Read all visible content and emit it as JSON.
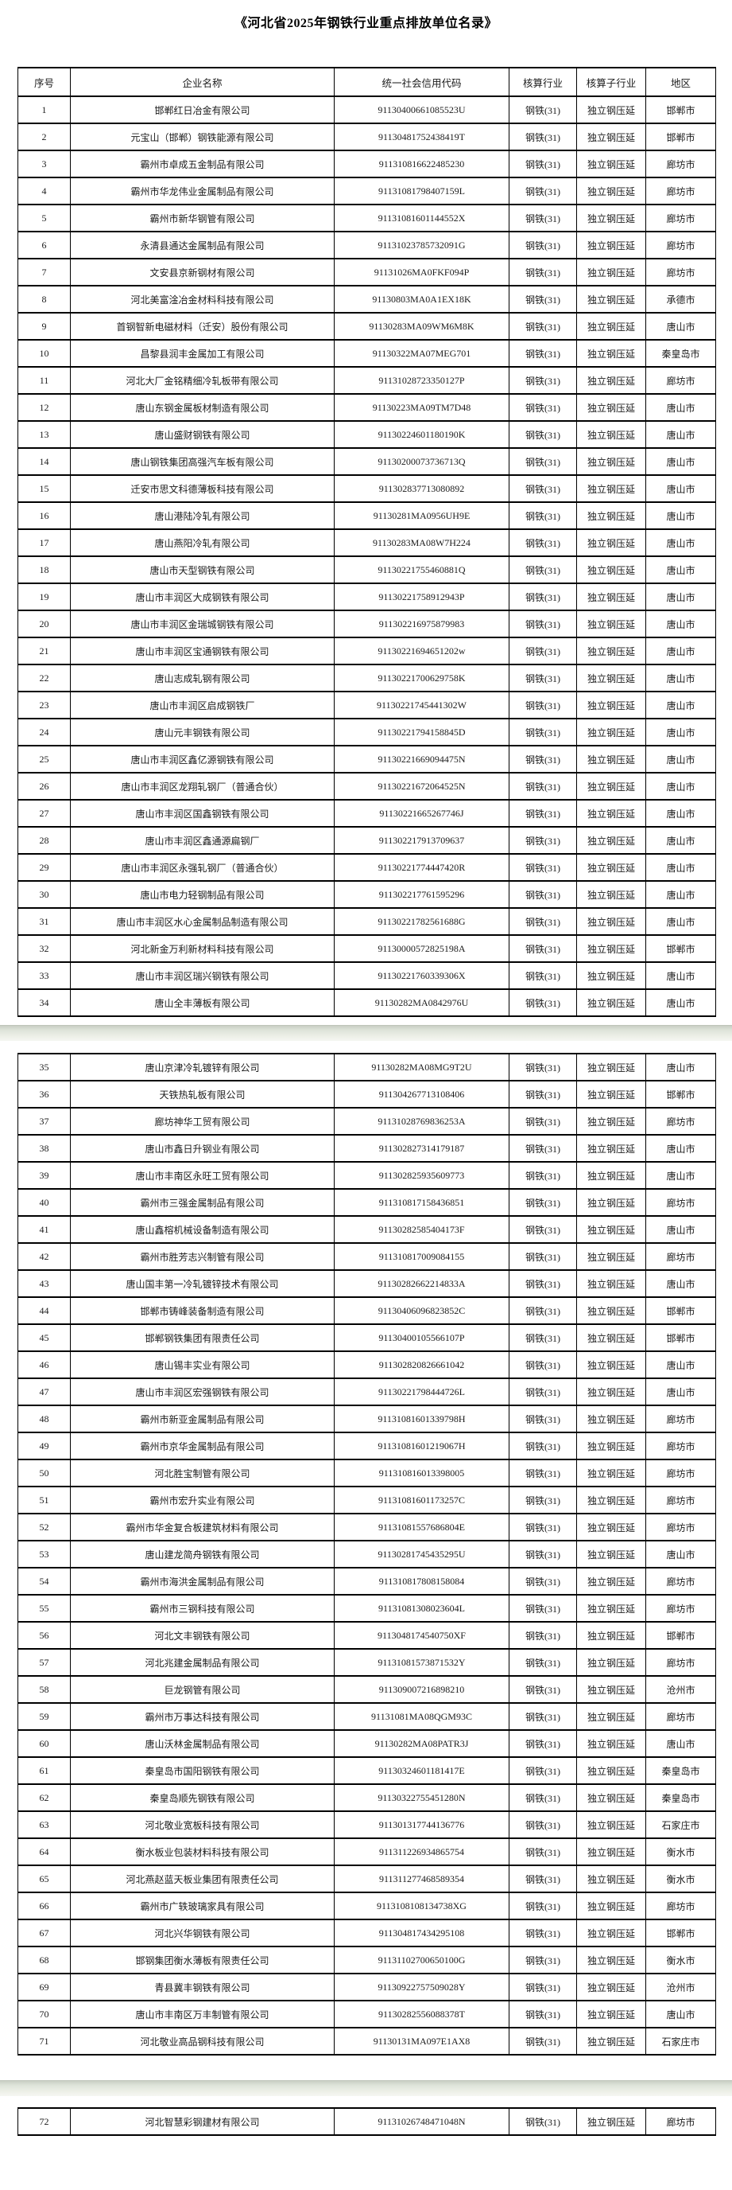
{
  "document": {
    "title": "《河北省2025年钢铁行业重点排放单位名录》"
  },
  "table": {
    "headers": [
      "序号",
      "企业名称",
      "统一社会信用代码",
      "核算行业",
      "核算子行业",
      "地区"
    ],
    "pages": [
      {
        "rows": [
          [
            "1",
            "邯郸红日冶金有限公司",
            "91130400661085523U",
            "钢铁(31)",
            "独立钢压延",
            "邯郸市"
          ],
          [
            "2",
            "元宝山（邯郸）钢铁能源有限公司",
            "91130481752438419T",
            "钢铁(31)",
            "独立钢压延",
            "邯郸市"
          ],
          [
            "3",
            "霸州市卓成五金制品有限公司",
            "911310816622485230",
            "钢铁(31)",
            "独立钢压延",
            "廊坊市"
          ],
          [
            "4",
            "霸州市华龙伟业金属制品有限公司",
            "91131081798407159L",
            "钢铁(31)",
            "独立钢压延",
            "廊坊市"
          ],
          [
            "5",
            "霸州市新华钢管有限公司",
            "91131081601144552X",
            "钢铁(31)",
            "独立钢压延",
            "廊坊市"
          ],
          [
            "6",
            "永清县通达金属制品有限公司",
            "91131023785732091G",
            "钢铁(31)",
            "独立钢压延",
            "廊坊市"
          ],
          [
            "7",
            "文安县京新钢材有限公司",
            "91131026MA0FKF094P",
            "钢铁(31)",
            "独立钢压延",
            "廊坊市"
          ],
          [
            "8",
            "河北美富淦冶金材料科技有限公司",
            "91130803MA0A1EX18K",
            "钢铁(31)",
            "独立钢压延",
            "承德市"
          ],
          [
            "9",
            "首钢智新电磁材料（迁安）股份有限公司",
            "91130283MA09WM6M8K",
            "钢铁(31)",
            "独立钢压延",
            "唐山市"
          ],
          [
            "10",
            "昌黎县润丰金属加工有限公司",
            "91130322MA07MEG701",
            "钢铁(31)",
            "独立钢压延",
            "秦皇岛市"
          ],
          [
            "11",
            "河北大厂金铭精细冷轧板带有限公司",
            "91131028723350127P",
            "钢铁(31)",
            "独立钢压延",
            "廊坊市"
          ],
          [
            "12",
            "唐山东钢金属板材制造有限公司",
            "91130223MA09TM7D48",
            "钢铁(31)",
            "独立钢压延",
            "唐山市"
          ],
          [
            "13",
            "唐山盛财钢铁有限公司",
            "91130224601180190K",
            "钢铁(31)",
            "独立钢压延",
            "唐山市"
          ],
          [
            "14",
            "唐山钢铁集团高强汽车板有限公司",
            "91130200073736713Q",
            "钢铁(31)",
            "独立钢压延",
            "唐山市"
          ],
          [
            "15",
            "迁安市思文科德薄板科技有限公司",
            "911302837713080892",
            "钢铁(31)",
            "独立钢压延",
            "唐山市"
          ],
          [
            "16",
            "唐山港陆冷轧有限公司",
            "91130281MA0956UH9E",
            "钢铁(31)",
            "独立钢压延",
            "唐山市"
          ],
          [
            "17",
            "唐山燕阳冷轧有限公司",
            "91130283MA08W7H224",
            "钢铁(31)",
            "独立钢压延",
            "唐山市"
          ],
          [
            "18",
            "唐山市天型钢铁有限公司",
            "91130221755460881Q",
            "钢铁(31)",
            "独立钢压延",
            "唐山市"
          ],
          [
            "19",
            "唐山市丰润区大成钢铁有限公司",
            "91130221758912943P",
            "钢铁(31)",
            "独立钢压延",
            "唐山市"
          ],
          [
            "20",
            "唐山市丰润区金瑞城钢铁有限公司",
            "911302216975879983",
            "钢铁(31)",
            "独立钢压延",
            "唐山市"
          ],
          [
            "21",
            "唐山市丰润区宝通钢铁有限公司",
            "91130221694651202w",
            "钢铁(31)",
            "独立钢压延",
            "唐山市"
          ],
          [
            "22",
            "唐山志成轧钢有限公司",
            "91130221700629758K",
            "钢铁(31)",
            "独立钢压延",
            "唐山市"
          ],
          [
            "23",
            "唐山市丰润区启成钢铁厂",
            "91130221745441302W",
            "钢铁(31)",
            "独立钢压延",
            "唐山市"
          ],
          [
            "24",
            "唐山元丰钢铁有限公司",
            "91130221794158845D",
            "钢铁(31)",
            "独立钢压延",
            "唐山市"
          ],
          [
            "25",
            "唐山市丰润区鑫亿源钢铁有限公司",
            "91130221669094475N",
            "钢铁(31)",
            "独立钢压延",
            "唐山市"
          ],
          [
            "26",
            "唐山市丰润区龙翔轧钢厂（普通合伙）",
            "91130221672064525N",
            "钢铁(31)",
            "独立钢压延",
            "唐山市"
          ],
          [
            "27",
            "唐山市丰润区国鑫钢铁有限公司",
            "91130221665267746J",
            "钢铁(31)",
            "独立钢压延",
            "唐山市"
          ],
          [
            "28",
            "唐山市丰润区鑫通源扁钢厂",
            "911302217913709637",
            "钢铁(31)",
            "独立钢压延",
            "唐山市"
          ],
          [
            "29",
            "唐山市丰润区永强轧钢厂（普通合伙）",
            "91130221774447420R",
            "钢铁(31)",
            "独立钢压延",
            "唐山市"
          ],
          [
            "30",
            "唐山市电力轻钢制品有限公司",
            "911302217761595296",
            "钢铁(31)",
            "独立钢压延",
            "唐山市"
          ],
          [
            "31",
            "唐山市丰润区水心金属制品制造有限公司",
            "91130221782561688G",
            "钢铁(31)",
            "独立钢压延",
            "唐山市"
          ],
          [
            "32",
            "河北新金万利新材料科技有限公司",
            "91130000572825198A",
            "钢铁(31)",
            "独立钢压延",
            "邯郸市"
          ],
          [
            "33",
            "唐山市丰润区瑞兴钢铁有限公司",
            "91130221760339306X",
            "钢铁(31)",
            "独立钢压延",
            "唐山市"
          ],
          [
            "34",
            "唐山全丰薄板有限公司",
            "91130282MA0842976U",
            "钢铁(31)",
            "独立钢压延",
            "唐山市"
          ]
        ]
      },
      {
        "rows": [
          [
            "35",
            "唐山京津冷轧镀锌有限公司",
            "91130282MA08MG9T2U",
            "钢铁(31)",
            "独立钢压延",
            "唐山市"
          ],
          [
            "36",
            "天铁热轧板有限公司",
            "911304267713108406",
            "钢铁(31)",
            "独立钢压延",
            "邯郸市"
          ],
          [
            "37",
            "廊坊神华工贸有限公司",
            "91131028769836253A",
            "钢铁(31)",
            "独立钢压延",
            "廊坊市"
          ],
          [
            "38",
            "唐山市鑫日升钢业有限公司",
            "911302827314179187",
            "钢铁(31)",
            "独立钢压延",
            "唐山市"
          ],
          [
            "39",
            "唐山市丰南区永旺工贸有限公司",
            "911302825935609773",
            "钢铁(31)",
            "独立钢压延",
            "唐山市"
          ],
          [
            "40",
            "霸州市三强金属制品有限公司",
            "911310817158436851",
            "钢铁(31)",
            "独立钢压延",
            "廊坊市"
          ],
          [
            "41",
            "唐山鑫榕机械设备制造有限公司",
            "91130282585404173F",
            "钢铁(31)",
            "独立钢压延",
            "唐山市"
          ],
          [
            "42",
            "霸州市胜芳志兴制管有限公司",
            "911310817009084155",
            "钢铁(31)",
            "独立钢压延",
            "廊坊市"
          ],
          [
            "43",
            "唐山国丰第一冷轧镀锌技术有限公司",
            "91130282662214833A",
            "钢铁(31)",
            "独立钢压延",
            "唐山市"
          ],
          [
            "44",
            "邯郸市铸峰装备制造有限公司",
            "91130406096823852C",
            "钢铁(31)",
            "独立钢压延",
            "邯郸市"
          ],
          [
            "45",
            "邯郸钢铁集团有限责任公司",
            "91130400105566107P",
            "钢铁(31)",
            "独立钢压延",
            "邯郸市"
          ],
          [
            "46",
            "唐山锡丰实业有限公司",
            "911302820826661042",
            "钢铁(31)",
            "独立钢压延",
            "唐山市"
          ],
          [
            "47",
            "唐山市丰润区宏强钢铁有限公司",
            "91130221798444726L",
            "钢铁(31)",
            "独立钢压延",
            "唐山市"
          ],
          [
            "48",
            "霸州市新亚金属制品有限公司",
            "91131081601339798H",
            "钢铁(31)",
            "独立钢压延",
            "廊坊市"
          ],
          [
            "49",
            "霸州市京华金属制品有限公司",
            "91131081601219067H",
            "钢铁(31)",
            "独立钢压延",
            "廊坊市"
          ],
          [
            "50",
            "河北胜宝制管有限公司",
            "911310816013398005",
            "钢铁(31)",
            "独立钢压延",
            "廊坊市"
          ],
          [
            "51",
            "霸州市宏升实业有限公司",
            "91131081601173257C",
            "钢铁(31)",
            "独立钢压延",
            "廊坊市"
          ],
          [
            "52",
            "霸州市华金复合板建筑材料有限公司",
            "91131081557686804E",
            "钢铁(31)",
            "独立钢压延",
            "廊坊市"
          ],
          [
            "53",
            "唐山建龙简舟钢铁有限公司",
            "91130281745435295U",
            "钢铁(31)",
            "独立钢压延",
            "唐山市"
          ],
          [
            "54",
            "霸州市海洪金属制品有限公司",
            "911310817808158084",
            "钢铁(31)",
            "独立钢压延",
            "廊坊市"
          ],
          [
            "55",
            "霸州市三钢科技有限公司",
            "91131081308023604L",
            "钢铁(31)",
            "独立钢压延",
            "廊坊市"
          ],
          [
            "56",
            "河北文丰钢铁有限公司",
            "9113048174540750XF",
            "钢铁(31)",
            "独立钢压延",
            "邯郸市"
          ],
          [
            "57",
            "河北兆建金属制品有限公司",
            "91131081573871532Y",
            "钢铁(31)",
            "独立钢压延",
            "廊坊市"
          ],
          [
            "58",
            "巨龙钢管有限公司",
            "911309007216898210",
            "钢铁(31)",
            "独立钢压延",
            "沧州市"
          ],
          [
            "59",
            "霸州市万事达科技有限公司",
            "91131081MA08QGM93C",
            "钢铁(31)",
            "独立钢压延",
            "廊坊市"
          ],
          [
            "60",
            "唐山沃林金属制品有限公司",
            "91130282MA08PATR3J",
            "钢铁(31)",
            "独立钢压延",
            "唐山市"
          ],
          [
            "61",
            "秦皇岛市国阳钢铁有限公司",
            "91130324601181417E",
            "钢铁(31)",
            "独立钢压延",
            "秦皇岛市"
          ],
          [
            "62",
            "秦皇岛顺先钢铁有限公司",
            "91130322755451280N",
            "钢铁(31)",
            "独立钢压延",
            "秦皇岛市"
          ],
          [
            "63",
            "河北敬业宽板科技有限公司",
            "911301317744136776",
            "钢铁(31)",
            "独立钢压延",
            "石家庄市"
          ],
          [
            "64",
            "衡水板业包装材料科技有限公司",
            "911311226934865754",
            "钢铁(31)",
            "独立钢压延",
            "衡水市"
          ],
          [
            "65",
            "河北燕赵蓝天板业集团有限责任公司",
            "911311277468589354",
            "钢铁(31)",
            "独立钢压延",
            "衡水市"
          ],
          [
            "66",
            "霸州市广轶玻璃家具有限公司",
            "9113108108134738XG",
            "钢铁(31)",
            "独立钢压延",
            "廊坊市"
          ],
          [
            "67",
            "河北兴华钢铁有限公司",
            "911304817434295108",
            "钢铁(31)",
            "独立钢压延",
            "邯郸市"
          ],
          [
            "68",
            "邯钢集团衡水薄板有限责任公司",
            "91131102700650100G",
            "钢铁(31)",
            "独立钢压延",
            "衡水市"
          ],
          [
            "69",
            "青县冀丰钢铁有限公司",
            "91130922757509028Y",
            "钢铁(31)",
            "独立钢压延",
            "沧州市"
          ],
          [
            "70",
            "唐山市丰南区万丰制管有限公司",
            "91130282556088378T",
            "钢铁(31)",
            "独立钢压延",
            "唐山市"
          ],
          [
            "71",
            "河北敬业高品钢科技有限公司",
            "91130131MA097E1AX8",
            "钢铁(31)",
            "独立钢压延",
            "石家庄市"
          ]
        ]
      },
      {
        "rows": [
          [
            "72",
            "河北智慧彩钢建材有限公司",
            "91131026748471048N",
            "钢铁(31)",
            "独立钢压延",
            "廊坊市"
          ]
        ]
      }
    ]
  }
}
